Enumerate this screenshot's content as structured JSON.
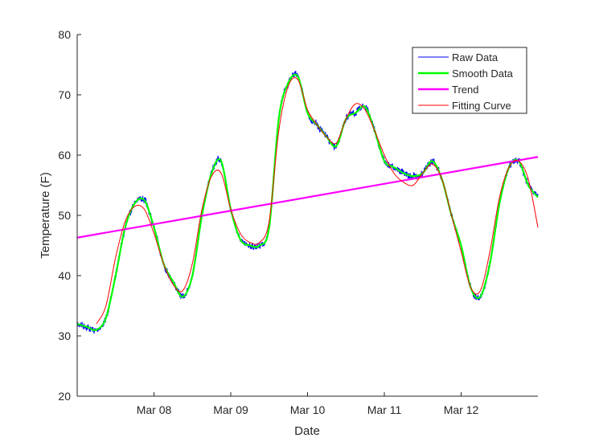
{
  "chart_data": {
    "type": "line",
    "title": "",
    "xlabel": "Date",
    "ylabel": "Temperature (F)",
    "xlim": [
      "2000-03-07 00:00",
      "2000-03-13 00:00"
    ],
    "ylim": [
      20,
      80
    ],
    "x_ticks": [
      "Mar 08",
      "Mar 09",
      "Mar 10",
      "Mar 11",
      "Mar 12"
    ],
    "y_ticks": [
      20,
      30,
      40,
      50,
      60,
      70,
      80
    ],
    "grid": false,
    "legend_position": "top-right",
    "series": [
      {
        "name": "Raw Data",
        "color": "#0000ff",
        "style": "noisy line",
        "x": [
          "2000-03-07 00:00",
          "2000-03-07 03:00",
          "2000-03-07 06:00",
          "2000-03-07 09:00",
          "2000-03-07 12:00",
          "2000-03-07 15:00",
          "2000-03-07 18:00",
          "2000-03-07 21:00",
          "2000-03-08 00:00",
          "2000-03-08 03:00",
          "2000-03-08 06:00",
          "2000-03-08 09:00",
          "2000-03-08 12:00",
          "2000-03-08 15:00",
          "2000-03-08 18:00",
          "2000-03-08 21:00",
          "2000-03-09 00:00",
          "2000-03-09 03:00",
          "2000-03-09 06:00",
          "2000-03-09 09:00",
          "2000-03-09 12:00",
          "2000-03-09 15:00",
          "2000-03-09 18:00",
          "2000-03-09 21:00",
          "2000-03-10 00:00",
          "2000-03-10 03:00",
          "2000-03-10 06:00",
          "2000-03-10 09:00",
          "2000-03-10 12:00",
          "2000-03-10 15:00",
          "2000-03-10 18:00",
          "2000-03-10 21:00",
          "2000-03-11 00:00",
          "2000-03-11 03:00",
          "2000-03-11 06:00",
          "2000-03-11 09:00",
          "2000-03-11 12:00",
          "2000-03-11 15:00",
          "2000-03-11 18:00",
          "2000-03-11 21:00",
          "2000-03-12 00:00",
          "2000-03-12 03:00",
          "2000-03-12 06:00",
          "2000-03-12 09:00",
          "2000-03-12 12:00",
          "2000-03-12 15:00",
          "2000-03-12 18:00",
          "2000-03-12 21:00",
          "2000-03-13 00:00"
        ],
        "y": [
          32,
          31.5,
          31,
          33,
          40,
          48,
          52,
          52.5,
          48,
          42,
          39,
          36.5,
          40,
          50,
          57,
          59,
          51,
          46,
          45,
          45,
          48,
          66,
          72,
          73,
          67,
          65,
          63,
          61.5,
          66,
          67,
          68,
          64,
          59,
          58,
          57,
          56.5,
          57,
          59,
          56,
          50,
          45,
          38,
          36.5,
          42,
          52,
          58,
          59,
          55,
          53
        ]
      },
      {
        "name": "Smooth Data",
        "color": "#00ff00",
        "style": "smooth line",
        "x": [
          "2000-03-07 00:00",
          "2000-03-07 03:00",
          "2000-03-07 06:00",
          "2000-03-07 09:00",
          "2000-03-07 12:00",
          "2000-03-07 15:00",
          "2000-03-07 18:00",
          "2000-03-07 21:00",
          "2000-03-08 00:00",
          "2000-03-08 03:00",
          "2000-03-08 06:00",
          "2000-03-08 09:00",
          "2000-03-08 12:00",
          "2000-03-08 15:00",
          "2000-03-08 18:00",
          "2000-03-08 21:00",
          "2000-03-09 00:00",
          "2000-03-09 03:00",
          "2000-03-09 06:00",
          "2000-03-09 09:00",
          "2000-03-09 12:00",
          "2000-03-09 15:00",
          "2000-03-09 18:00",
          "2000-03-09 21:00",
          "2000-03-10 00:00",
          "2000-03-10 03:00",
          "2000-03-10 06:00",
          "2000-03-10 09:00",
          "2000-03-10 12:00",
          "2000-03-10 15:00",
          "2000-03-10 18:00",
          "2000-03-10 21:00",
          "2000-03-11 00:00",
          "2000-03-11 03:00",
          "2000-03-11 06:00",
          "2000-03-11 09:00",
          "2000-03-11 12:00",
          "2000-03-11 15:00",
          "2000-03-11 18:00",
          "2000-03-11 21:00",
          "2000-03-12 00:00",
          "2000-03-12 03:00",
          "2000-03-12 06:00",
          "2000-03-12 09:00",
          "2000-03-12 12:00",
          "2000-03-12 15:00",
          "2000-03-12 18:00",
          "2000-03-12 21:00",
          "2000-03-13 00:00"
        ],
        "y": [
          32,
          31.5,
          31,
          33,
          40,
          48,
          52,
          52.5,
          48,
          42,
          39,
          36.5,
          40,
          50,
          57,
          59,
          51,
          46,
          45,
          45,
          48,
          66,
          72,
          73,
          67,
          65,
          63,
          61.5,
          66,
          67,
          68,
          64,
          59,
          58,
          57,
          56.5,
          57,
          59,
          56,
          50,
          45,
          38,
          36.5,
          42,
          52,
          58,
          59,
          55,
          53
        ]
      },
      {
        "name": "Trend",
        "color": "#ff00ff",
        "style": "straight line",
        "x": [
          "2000-03-07 00:00",
          "2000-03-13 00:00"
        ],
        "y": [
          46.3,
          59.7
        ]
      },
      {
        "name": "Fitting Curve",
        "color": "#ff0000",
        "style": "thin smooth line",
        "x": [
          "2000-03-07 06:00",
          "2000-03-07 09:00",
          "2000-03-07 12:00",
          "2000-03-07 15:00",
          "2000-03-07 18:00",
          "2000-03-07 21:00",
          "2000-03-08 00:00",
          "2000-03-08 03:00",
          "2000-03-08 06:00",
          "2000-03-08 09:00",
          "2000-03-08 12:00",
          "2000-03-08 15:00",
          "2000-03-08 18:00",
          "2000-03-08 21:00",
          "2000-03-09 00:00",
          "2000-03-09 03:00",
          "2000-03-09 06:00",
          "2000-03-09 09:00",
          "2000-03-09 12:00",
          "2000-03-09 15:00",
          "2000-03-09 18:00",
          "2000-03-09 21:00",
          "2000-03-10 00:00",
          "2000-03-10 03:00",
          "2000-03-10 06:00",
          "2000-03-10 09:00",
          "2000-03-10 12:00",
          "2000-03-10 15:00",
          "2000-03-10 18:00",
          "2000-03-10 21:00",
          "2000-03-11 00:00",
          "2000-03-11 03:00",
          "2000-03-11 06:00",
          "2000-03-11 09:00",
          "2000-03-11 12:00",
          "2000-03-11 15:00",
          "2000-03-11 18:00",
          "2000-03-11 21:00",
          "2000-03-12 00:00",
          "2000-03-12 03:00",
          "2000-03-12 06:00",
          "2000-03-12 09:00",
          "2000-03-12 12:00",
          "2000-03-12 15:00",
          "2000-03-12 18:00",
          "2000-03-12 21:00",
          "2000-03-13 00:00"
        ],
        "y": [
          32,
          35,
          43,
          49,
          51.5,
          51,
          47,
          42,
          38.5,
          37.5,
          42,
          51,
          56.5,
          57,
          51,
          47,
          45.5,
          45.5,
          49,
          64,
          71.5,
          72.5,
          67.5,
          65,
          63,
          62,
          66,
          68.5,
          67.5,
          64,
          60,
          57,
          55.5,
          55,
          57,
          58.5,
          56,
          50,
          44,
          38,
          37.5,
          44,
          53,
          58,
          59,
          56,
          48
        ]
      }
    ]
  }
}
